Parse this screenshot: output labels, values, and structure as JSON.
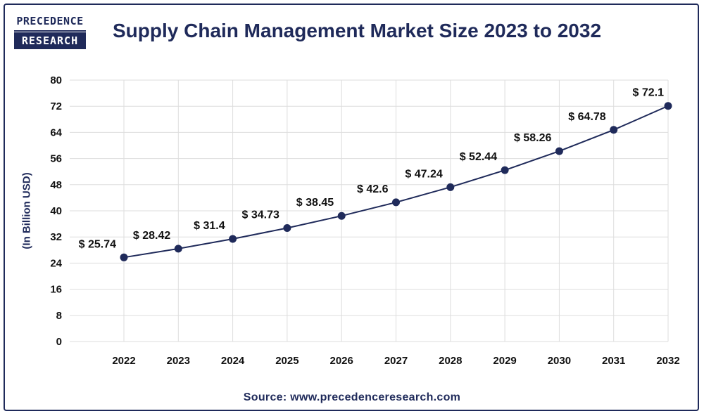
{
  "logo": {
    "line1": "PRECEDENCE",
    "line2": "RESEARCH"
  },
  "header": {
    "title": "Supply Chain Management Market Size 2023 to 2032"
  },
  "footer": {
    "source": "Source: www.precedenceresearch.com"
  },
  "colors": {
    "primary": "#1f2a5a",
    "grid": "#dddddd",
    "line": "#1f2a5a"
  },
  "chart_data": {
    "type": "line",
    "title": "Supply Chain Management Market Size 2023 to 2032",
    "xlabel": "",
    "ylabel": "(In Billion USD)",
    "categories": [
      "2022",
      "2023",
      "2024",
      "2025",
      "2026",
      "2027",
      "2028",
      "2029",
      "2030",
      "2031",
      "2032"
    ],
    "series": [
      {
        "name": "Market Size",
        "values": [
          25.74,
          28.42,
          31.4,
          34.73,
          38.45,
          42.6,
          47.24,
          52.44,
          58.26,
          64.78,
          72.1
        ]
      }
    ],
    "data_labels": [
      "$ 25.74",
      "$ 28.42",
      "$ 31.4",
      "$ 34.73",
      "$ 38.45",
      "$ 42.6",
      "$ 47.24",
      "$ 52.44",
      "$ 58.26",
      "$ 64.78",
      "$ 72.1"
    ],
    "ylim": [
      0,
      80
    ],
    "yticks": [
      0,
      8,
      16,
      24,
      32,
      40,
      48,
      56,
      64,
      72,
      80
    ],
    "grid": true,
    "legend": "none"
  }
}
